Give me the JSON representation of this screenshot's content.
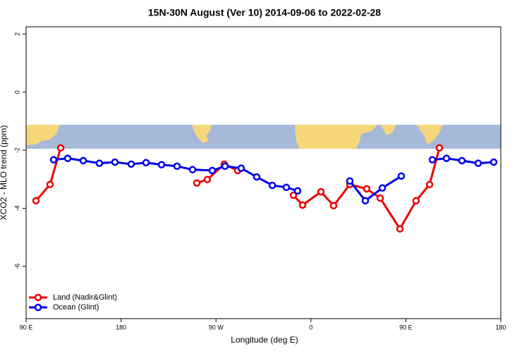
{
  "chart_data": {
    "type": "line",
    "title": "15N-30N August (Ver 10)   2014-09-06 to 2022-02-28",
    "x_label": "Longitude (deg E)",
    "y_label": "XCO2 - MLO trend (ppm)",
    "xlim": [
      90,
      540
    ],
    "ylim": [
      -7.8,
      2.25
    ],
    "xticks": [
      {
        "value": 90,
        "label": "90 E"
      },
      180,
      {
        "value": 270,
        "label": "90 W"
      },
      {
        "value": 360,
        "label": "0"
      },
      {
        "value": 450,
        "label": "90 E"
      },
      {
        "value": 540,
        "label": "180"
      }
    ],
    "yticks": [
      2,
      0,
      -2,
      -4,
      -6
    ],
    "legend": "bottom-left",
    "series": [
      {
        "name": "Land (Nadir&Glint)",
        "color": "#ee0000",
        "x": [
          99.4,
          112.7,
          122.8,
          null,
          251.8,
          261.8,
          277.9,
          290.6,
          null,
          343.4,
          352.1,
          369.5,
          381.5,
          396.9,
          412.9,
          425.7,
          444.4,
          459.7,
          472.5,
          481.8
        ],
        "values": [
          -3.74,
          -3.18,
          -1.92,
          null,
          -3.13,
          -3.01,
          -2.48,
          -2.7,
          null,
          -3.55,
          -3.89,
          -3.43,
          -3.91,
          -3.18,
          -3.33,
          -3.65,
          -4.71,
          -3.74,
          -3.18,
          -1.92
        ]
      },
      {
        "name": "Ocean (Glint)",
        "color": "#0000ee",
        "x": [
          116.1,
          129.4,
          144.2,
          159.5,
          174.2,
          189.6,
          203.7,
          218.4,
          233.1,
          247.8,
          266.5,
          278.6,
          293.9,
          308.6,
          323.4,
          336.7,
          347.4,
          null,
          396.9,
          411.6,
          427.7,
          445.7,
          null,
          475.1,
          488.5,
          503.2,
          518.6,
          533.3
        ],
        "values": [
          -2.33,
          -2.28,
          -2.36,
          -2.45,
          -2.41,
          -2.48,
          -2.43,
          -2.5,
          -2.55,
          -2.67,
          -2.7,
          -2.55,
          -2.62,
          -2.92,
          -3.21,
          -3.28,
          -3.4,
          null,
          -3.06,
          -3.74,
          -3.3,
          -2.89,
          null,
          -2.33,
          -2.28,
          -2.36,
          -2.45,
          -2.41
        ]
      }
    ]
  }
}
